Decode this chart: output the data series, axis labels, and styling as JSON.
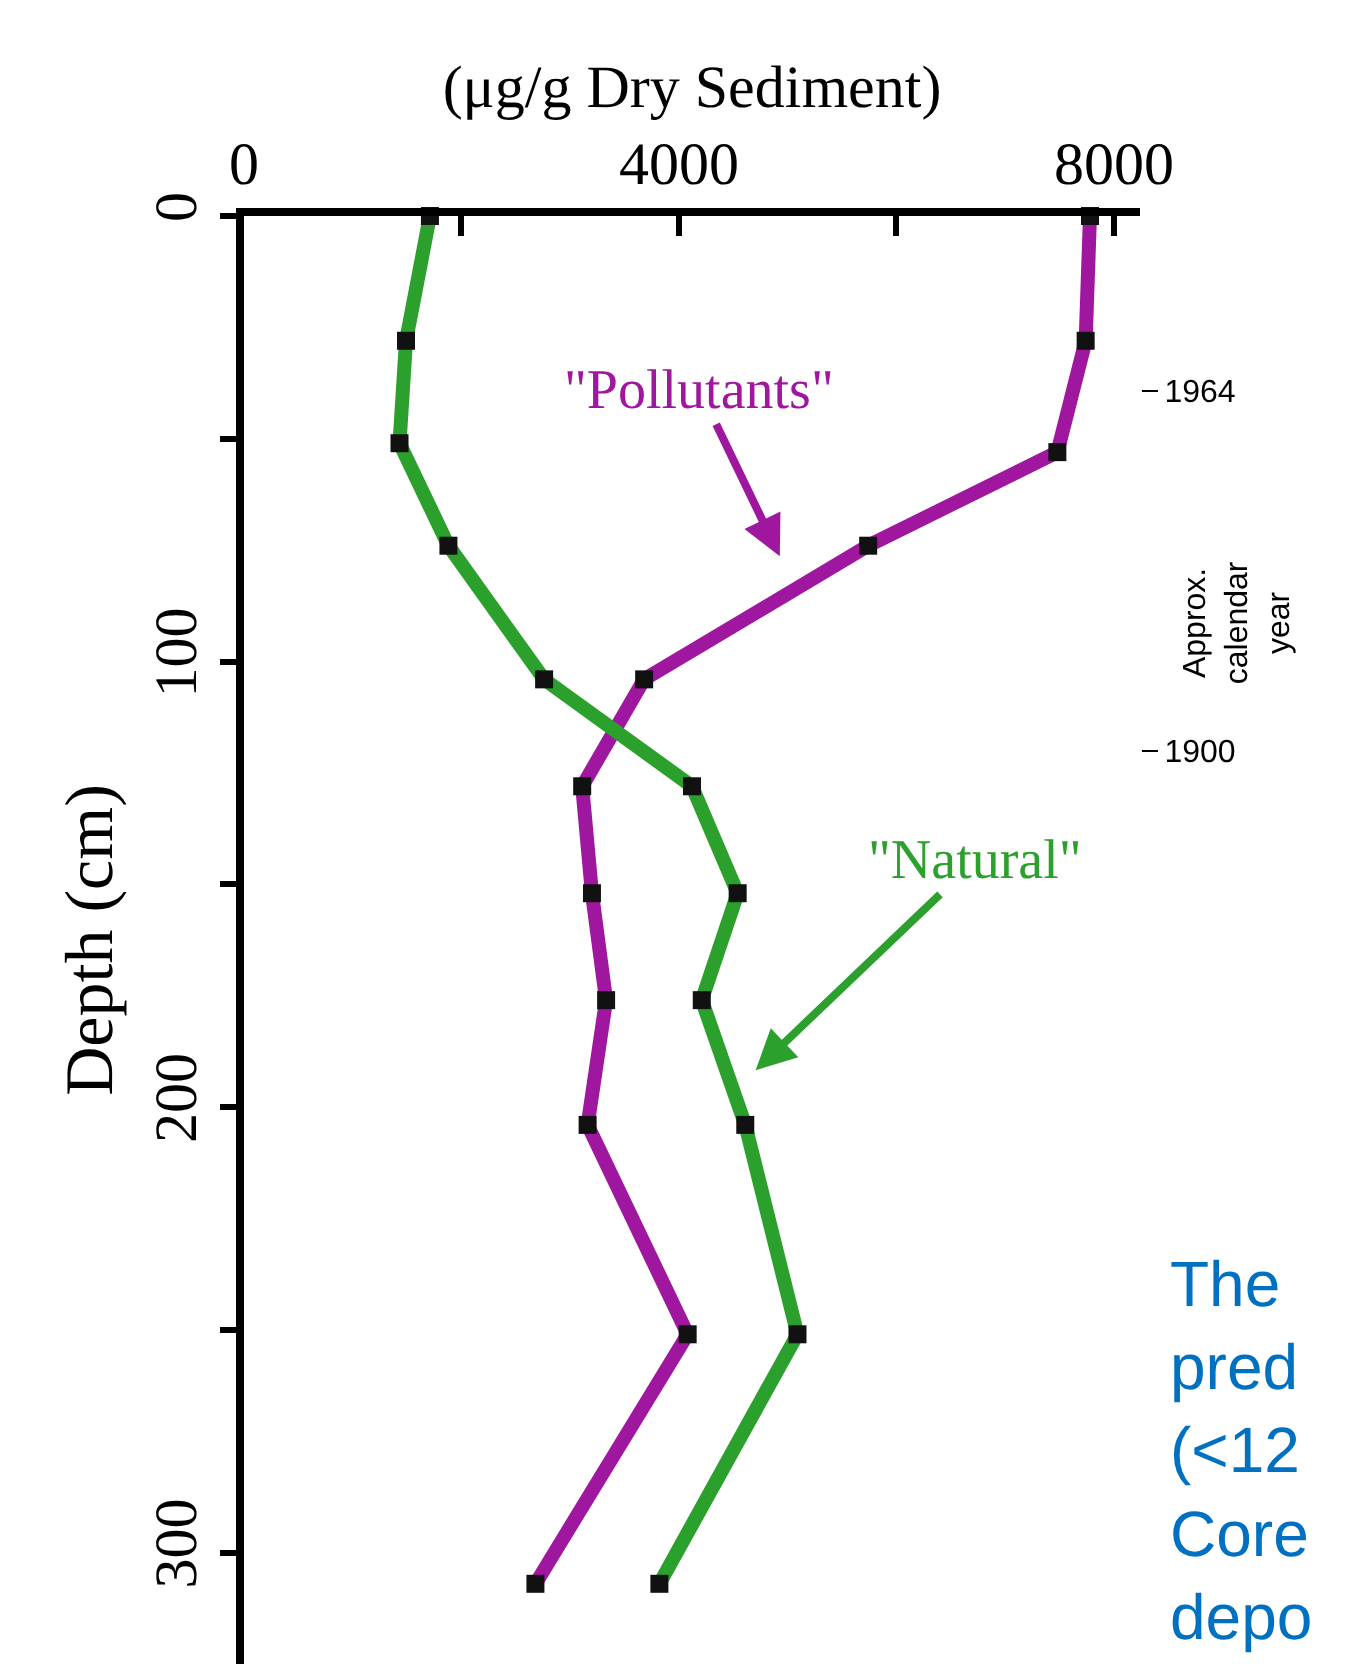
{
  "chart_data": {
    "type": "line",
    "xlabel": "(μg/g Dry Sediment)",
    "ylabel": "Depth (cm)",
    "y2label": "Approx.\ncalendar\nyear",
    "xlim": [
      0,
      8240
    ],
    "xticks": [
      0,
      {
        "value": 2000,
        "label": null
      },
      4000,
      {
        "value": 6000,
        "label": null
      },
      8000
    ],
    "ylim": [
      325,
      0
    ],
    "yticks": [
      0,
      {
        "value": 50,
        "label": null
      },
      100,
      {
        "value": 150,
        "label": null
      },
      200,
      {
        "value": 250,
        "label": null
      },
      300
    ],
    "y2lim": [
      1738,
      1995
    ],
    "y2ticks": [
      1964,
      1900
    ],
    "grid": false,
    "marker": "square",
    "line_style": "solid",
    "orientation": "horizontal",
    "series": [
      {
        "color": "#a0179f",
        "x": [
          0,
          28,
          53,
          74,
          104,
          128,
          152,
          176,
          204,
          251,
          307
        ],
        "values": [
          7780,
          7740,
          7480,
          5740,
          3680,
          3110,
          3200,
          3330,
          3160,
          4080,
          2680
        ]
      },
      {
        "color": "#2ca02c",
        "x": [
          0,
          28,
          51,
          74,
          104,
          128,
          152,
          176,
          204,
          251,
          307
        ],
        "values": [
          1710,
          1490,
          1430,
          1880,
          2760,
          4120,
          4540,
          4210,
          4610,
          5090,
          3820
        ]
      }
    ],
    "annotations": [
      "\"Pollutants\"",
      "\"Natural\"",
      "The\npred\n(<12\nCore\ndepo"
    ]
  }
}
